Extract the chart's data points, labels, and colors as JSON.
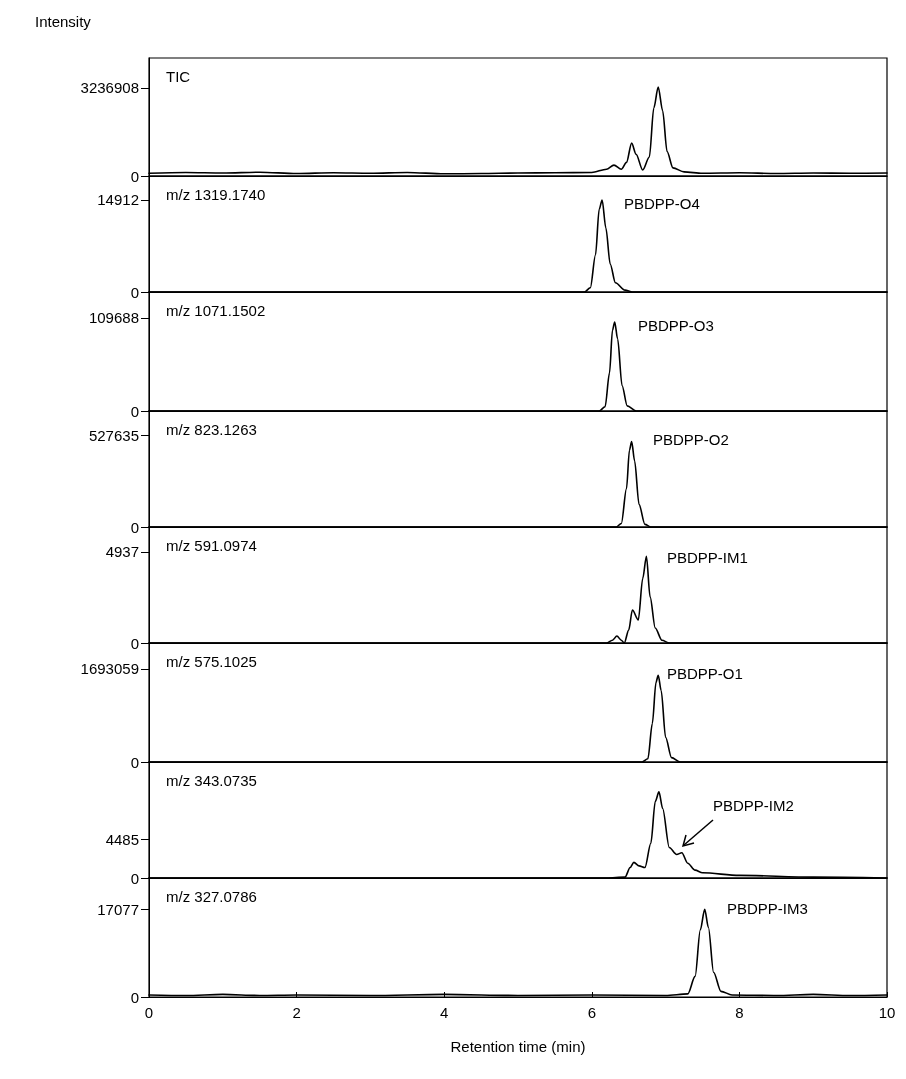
{
  "chart_data": [
    {
      "type": "line",
      "title": "TIC",
      "ylabel": "Intensity",
      "color": "#000000",
      "marker": "none",
      "tick_labels": "y",
      "xlim": [
        0,
        10
      ],
      "xticks": [
        0,
        2,
        4,
        6,
        8,
        10
      ],
      "ylim": [
        0,
        4340000
      ],
      "yticks": [
        0,
        3236908
      ],
      "x": [
        0,
        0.5,
        1,
        1.5,
        2,
        2.5,
        3,
        3.5,
        4,
        4.5,
        5,
        5.5,
        6,
        6.2,
        6.3,
        6.4,
        6.47,
        6.54,
        6.6,
        6.69,
        6.78,
        6.84,
        6.9,
        6.96,
        7.02,
        7.1,
        7.25,
        7.5,
        8,
        8.5,
        9,
        9.5,
        10
      ],
      "values": [
        100000,
        130000,
        110000,
        140000,
        90000,
        120000,
        100000,
        130000,
        80000,
        90000,
        110000,
        120000,
        130000,
        250000,
        400000,
        250000,
        500000,
        1210000,
        800000,
        220000,
        700000,
        2500000,
        3270000,
        2400000,
        900000,
        300000,
        150000,
        100000,
        120000,
        90000,
        110000,
        100000,
        110000
      ]
    },
    {
      "type": "line",
      "title": "m/z 1319.1740",
      "annotations": [
        "PBDPP-O4"
      ],
      "color": "#000000",
      "marker": "none",
      "tick_labels": "y",
      "xlim": [
        0,
        10
      ],
      "xticks": [
        0,
        2,
        4,
        6,
        8,
        10
      ],
      "ylim": [
        0,
        18800
      ],
      "yticks": [
        0,
        14912
      ],
      "x": [
        0,
        5.9,
        5.98,
        6.05,
        6.1,
        6.14,
        6.19,
        6.25,
        6.32,
        6.45,
        6.55,
        10
      ],
      "values": [
        0,
        0,
        700,
        6000,
        13400,
        14900,
        10400,
        4500,
        1500,
        300,
        0,
        0
      ]
    },
    {
      "type": "line",
      "title": "m/z 1071.1502",
      "annotations": [
        "PBDPP-O3"
      ],
      "color": "#000000",
      "marker": "none",
      "tick_labels": "y",
      "xlim": [
        0,
        10
      ],
      "xticks": [
        0,
        2,
        4,
        6,
        8,
        10
      ],
      "ylim": [
        0,
        140300
      ],
      "yticks": [
        0,
        109688
      ],
      "x": [
        0,
        6.1,
        6.18,
        6.24,
        6.28,
        6.31,
        6.35,
        6.41,
        6.48,
        6.6,
        10
      ],
      "values": [
        0,
        0,
        5000,
        45000,
        95000,
        105000,
        85000,
        30000,
        6000,
        0,
        0
      ]
    },
    {
      "type": "line",
      "title": "m/z 823.1263",
      "annotations": [
        "PBDPP-O2"
      ],
      "color": "#000000",
      "marker": "none",
      "tick_labels": "y",
      "xlim": [
        0,
        10
      ],
      "xticks": [
        0,
        2,
        4,
        6,
        8,
        10
      ],
      "ylim": [
        0,
        665300
      ],
      "yticks": [
        0,
        527635
      ],
      "x": [
        0,
        6.33,
        6.4,
        6.47,
        6.51,
        6.54,
        6.58,
        6.64,
        6.72,
        6.8,
        10
      ],
      "values": [
        0,
        0,
        20000,
        220000,
        440000,
        490000,
        380000,
        130000,
        15000,
        0,
        0
      ]
    },
    {
      "type": "line",
      "title": "m/z 591.0974",
      "annotations": [
        "PBDPP-IM1"
      ],
      "color": "#000000",
      "marker": "none",
      "tick_labels": "y",
      "xlim": [
        0,
        10
      ],
      "xticks": [
        0,
        2,
        4,
        6,
        8,
        10
      ],
      "ylim": [
        0,
        6290
      ],
      "yticks": [
        0,
        4937
      ],
      "x": [
        0,
        6.2,
        6.28,
        6.34,
        6.4,
        6.44,
        6.5,
        6.55,
        6.63,
        6.69,
        6.74,
        6.79,
        6.86,
        6.95,
        7.05,
        10
      ],
      "values": [
        0,
        0,
        150,
        380,
        150,
        0,
        700,
        1790,
        1250,
        3500,
        4700,
        2500,
        810,
        150,
        0,
        0
      ]
    },
    {
      "type": "line",
      "title": "m/z 575.1025",
      "annotations": [
        "PBDPP-O1"
      ],
      "color": "#000000",
      "marker": "none",
      "tick_labels": "y",
      "xlim": [
        0,
        10
      ],
      "xticks": [
        0,
        2,
        4,
        6,
        8,
        10
      ],
      "ylim": [
        0,
        2166000
      ],
      "yticks": [
        0,
        1693059
      ],
      "x": [
        0,
        6.68,
        6.76,
        6.82,
        6.87,
        6.9,
        6.94,
        7.0,
        7.08,
        7.2,
        10
      ],
      "values": [
        0,
        0,
        60000,
        700000,
        1450000,
        1580000,
        1300000,
        450000,
        80000,
        0,
        0
      ]
    },
    {
      "type": "line",
      "title": "m/z 343.0735",
      "annotations": [
        "PBDPP-IM2"
      ],
      "color": "#000000",
      "marker": "none",
      "tick_labels": "y",
      "xlim": [
        0,
        10
      ],
      "xticks": [
        0,
        2,
        4,
        6,
        8,
        10
      ],
      "ylim": [
        0,
        13340
      ],
      "yticks": [
        0,
        4485
      ],
      "x": [
        0,
        6.2,
        6.45,
        6.52,
        6.57,
        6.64,
        6.72,
        6.8,
        6.86,
        6.91,
        6.96,
        7.05,
        7.15,
        7.22,
        7.3,
        7.4,
        7.5,
        8,
        9,
        10
      ],
      "values": [
        0,
        0,
        100,
        1200,
        1800,
        1400,
        1200,
        4000,
        8800,
        9900,
        8000,
        3500,
        2700,
        2900,
        1700,
        900,
        600,
        300,
        100,
        0
      ]
    },
    {
      "type": "line",
      "title": "m/z 327.0786",
      "annotations": [
        "PBDPP-IM3"
      ],
      "xlabel": "Retention time (min)",
      "color": "#000000",
      "marker": "none",
      "xlim": [
        0,
        10
      ],
      "xticks": [
        0,
        2,
        4,
        6,
        8,
        10
      ],
      "ylim": [
        0,
        23100
      ],
      "yticks": [
        0,
        17077
      ],
      "x": [
        0,
        0.5,
        1,
        1.5,
        2,
        3,
        4,
        5,
        6,
        7,
        7.3,
        7.4,
        7.47,
        7.53,
        7.58,
        7.65,
        7.75,
        7.9,
        8.5,
        9,
        9.5,
        10
      ],
      "values": [
        400,
        300,
        500,
        300,
        400,
        300,
        500,
        300,
        400,
        300,
        600,
        4000,
        13000,
        17000,
        13500,
        4800,
        1100,
        400,
        300,
        500,
        300,
        400
      ]
    }
  ]
}
